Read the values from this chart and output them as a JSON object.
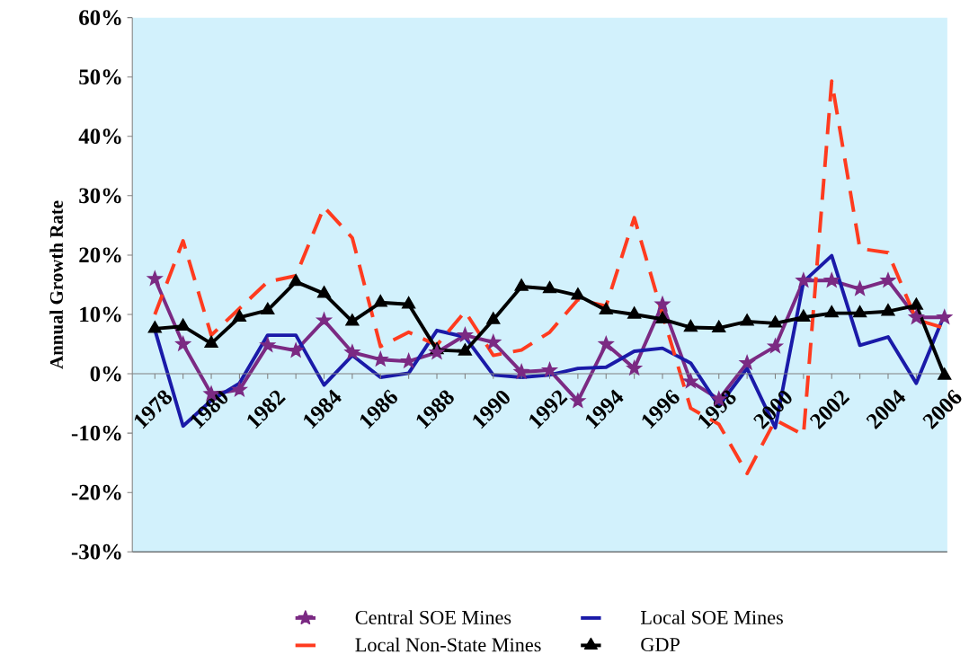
{
  "chart_data": {
    "type": "line",
    "ylabel": "Annual Growth Rate",
    "categories": [
      "1978",
      null,
      "1980",
      null,
      "1982",
      null,
      "1984",
      null,
      "1986",
      null,
      "1988",
      null,
      "1990",
      null,
      "1992",
      null,
      "1994",
      null,
      "1996",
      null,
      "1998",
      null,
      "2000",
      null,
      "2002",
      null,
      "2004",
      null,
      "2006"
    ],
    "series": [
      {
        "name": "Central SOE Mines",
        "color": "#7b2a83",
        "marker": "star",
        "line_style": "solid",
        "values": [
          16,
          5.0,
          -3.4,
          -2.7,
          4.8,
          3.9,
          9.0,
          3.6,
          2.4,
          2.1,
          3.6,
          6.5,
          5.3,
          0.3,
          0.6,
          -4.6,
          5.0,
          0.9,
          11.7,
          -1.3,
          -4.3,
          1.8,
          4.6,
          15.7,
          15.7,
          14.3,
          15.7,
          9.5,
          9.5
        ]
      },
      {
        "name": "Local SOE Mines",
        "color": "#1a1aa8",
        "marker": "none",
        "line_style": "solid",
        "values": [
          7.4,
          -8.8,
          -4.5,
          -1.6,
          6.5,
          6.5,
          -1.9,
          3.1,
          -0.6,
          0.1,
          7.3,
          6.2,
          -0.2,
          -0.6,
          -0.2,
          0.9,
          1.1,
          3.8,
          4.3,
          1.8,
          -5.4,
          0.9,
          -9.1,
          15.5,
          19.9,
          4.8,
          6.2,
          -1.6,
          10.0
        ]
      },
      {
        "name": "Local Non-State Mines",
        "color": "#ff3b1f",
        "marker": "none",
        "line_style": "dashed",
        "values": [
          10.0,
          22.4,
          6.5,
          11,
          15.5,
          16.5,
          28.1,
          22.9,
          4.6,
          7.0,
          4.8,
          10.5,
          3.1,
          4.0,
          7.0,
          12.5,
          11.4,
          26.3,
          10.0,
          -5.8,
          -8.5,
          -16.8,
          -7.8,
          -10.3,
          49.3,
          21.1,
          20.4,
          9.1,
          7.7
        ]
      },
      {
        "name": "GDP",
        "color": "#000000",
        "marker": "triangle",
        "line_style": "solid",
        "values": [
          7.6,
          8.0,
          5.1,
          9.5,
          10.7,
          15.5,
          13.5,
          8.8,
          12.0,
          11.7,
          4.0,
          3.8,
          9.1,
          14.7,
          14.3,
          13.2,
          10.7,
          10.0,
          9.2,
          7.8,
          7.7,
          8.8,
          8.5,
          9.5,
          10.2,
          10.2,
          10.5,
          11.5,
          -0.3
        ]
      }
    ],
    "ylim": [
      -30,
      60
    ],
    "yticks": [
      {
        "value": -30,
        "label": "-30%"
      },
      {
        "value": -20,
        "label": "-20%"
      },
      {
        "value": -10,
        "label": "-10%"
      },
      {
        "value": 0,
        "label": "0%"
      },
      {
        "value": 10,
        "label": "10%"
      },
      {
        "value": 20,
        "label": "20%"
      },
      {
        "value": 30,
        "label": "30%"
      },
      {
        "value": 40,
        "label": "40%"
      },
      {
        "value": 50,
        "label": "50%"
      },
      {
        "value": 60,
        "label": "60%"
      }
    ],
    "grid": false,
    "legend": "bottom"
  }
}
